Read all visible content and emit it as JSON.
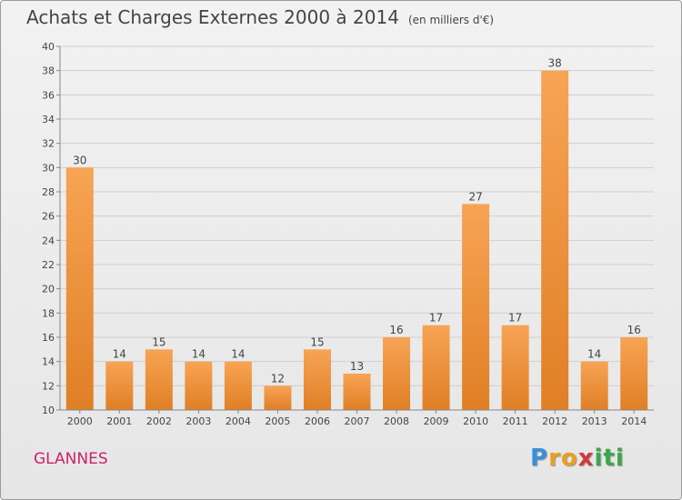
{
  "chart_data": {
    "type": "bar",
    "title": "Achats et Charges Externes 2000 à 2014",
    "subtitle": "(en milliers d'€)",
    "categories": [
      "2000",
      "2001",
      "2002",
      "2003",
      "2004",
      "2005",
      "2006",
      "2007",
      "2008",
      "2009",
      "2010",
      "2011",
      "2012",
      "2013",
      "2014"
    ],
    "values": [
      30,
      14,
      15,
      14,
      14,
      12,
      15,
      13,
      16,
      17,
      27,
      17,
      38,
      14,
      16
    ],
    "ylim": [
      10,
      40
    ],
    "yticks": [
      10,
      12,
      14,
      16,
      18,
      20,
      22,
      24,
      26,
      28,
      30,
      32,
      34,
      36,
      38,
      40
    ],
    "grid": true,
    "legend": "none",
    "bar_color_top": "#f7a455",
    "bar_color_bottom": "#e07f25"
  },
  "footer": {
    "commune": "GLANNES",
    "logo_letters": [
      "P",
      "r",
      "o",
      "x",
      "i",
      "t",
      "i"
    ],
    "logo_colors": [
      "#3a8fd8",
      "#e8a020",
      "#e8a020",
      "#d23a3a",
      "#3aa84a",
      "#3aa84a",
      "#3aa84a"
    ]
  }
}
